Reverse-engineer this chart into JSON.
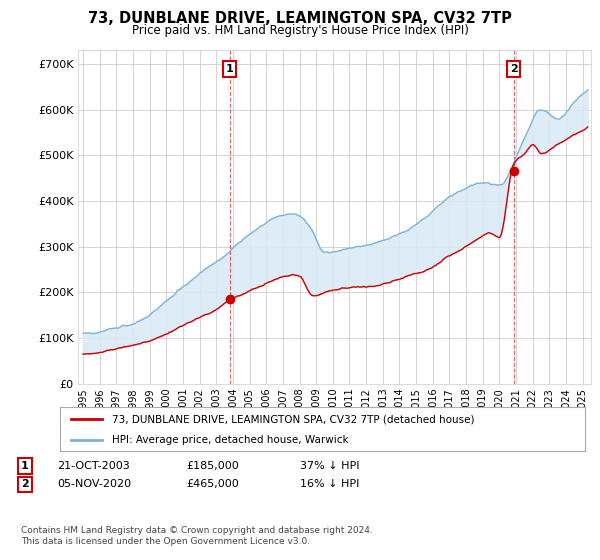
{
  "title": "73, DUNBLANE DRIVE, LEAMINGTON SPA, CV32 7TP",
  "subtitle": "Price paid vs. HM Land Registry's House Price Index (HPI)",
  "ylabel_ticks": [
    "£0",
    "£100K",
    "£200K",
    "£300K",
    "£400K",
    "£500K",
    "£600K",
    "£700K"
  ],
  "ytick_values": [
    0,
    100000,
    200000,
    300000,
    400000,
    500000,
    600000,
    700000
  ],
  "ylim": [
    0,
    730000
  ],
  "xlim_start": 1994.7,
  "xlim_end": 2025.5,
  "hpi_color": "#7ab4d8",
  "hpi_fill_color": "#daeaf5",
  "price_color": "#cc0000",
  "purchase1_date": 2003.8,
  "purchase1_price": 185000,
  "purchase2_date": 2020.85,
  "purchase2_price": 465000,
  "legend_line1": "73, DUNBLANE DRIVE, LEAMINGTON SPA, CV32 7TP (detached house)",
  "legend_line2": "HPI: Average price, detached house, Warwick",
  "ann1_text": "21-OCT-2003",
  "ann1_price": "£185,000",
  "ann1_hpi": "37% ↓ HPI",
  "ann2_text": "05-NOV-2020",
  "ann2_price": "£465,000",
  "ann2_hpi": "16% ↓ HPI",
  "footer": "Contains HM Land Registry data © Crown copyright and database right 2024.\nThis data is licensed under the Open Government Licence v3.0.",
  "bg_color": "#ffffff",
  "grid_color": "#cccccc"
}
